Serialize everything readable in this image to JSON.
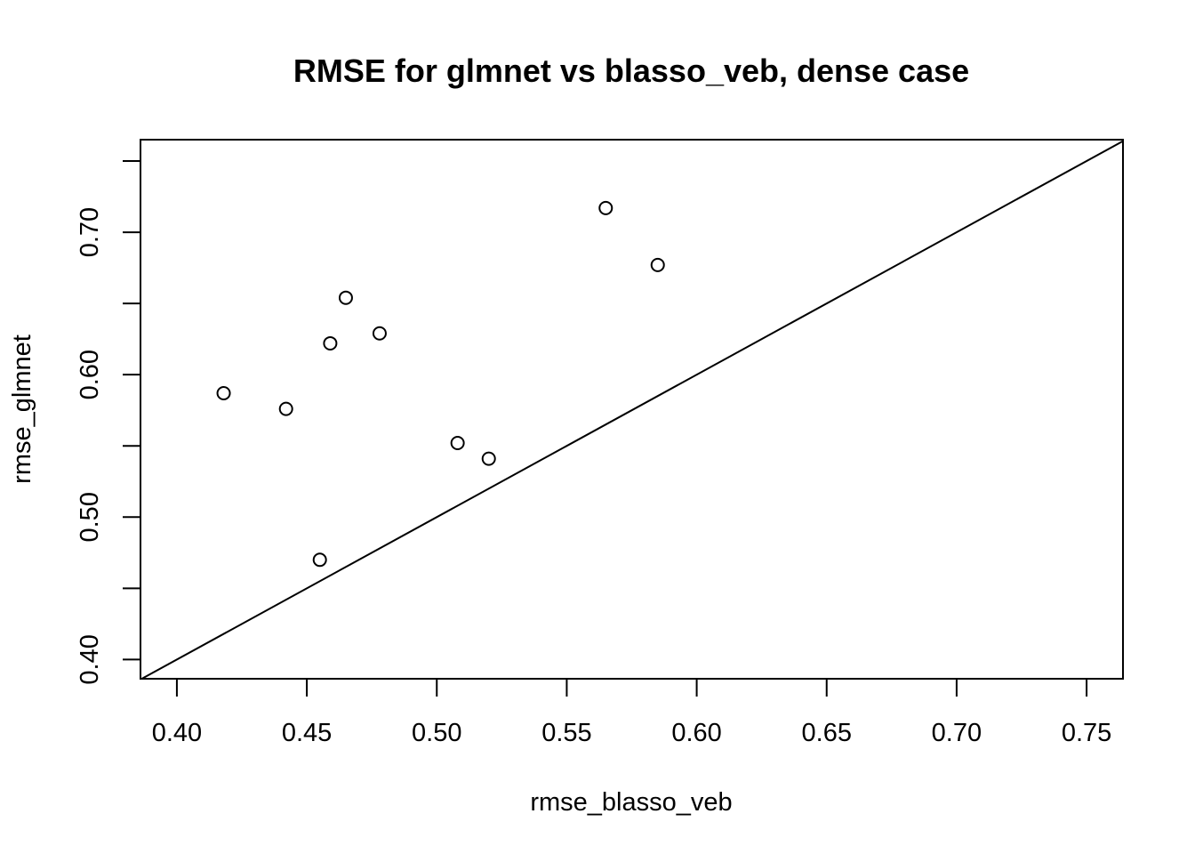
{
  "chart_data": {
    "type": "scatter",
    "title": "RMSE for glmnet vs blasso_veb, dense case",
    "xlabel": "rmse_blasso_veb",
    "ylabel": "rmse_glmnet",
    "xlim": [
      0.386,
      0.764
    ],
    "ylim": [
      0.3865,
      0.765
    ],
    "x_ticks": [
      0.4,
      0.45,
      0.5,
      0.55,
      0.6,
      0.65,
      0.7,
      0.75
    ],
    "x_tick_labels": [
      "0.40",
      "0.45",
      "0.50",
      "0.55",
      "0.60",
      "0.65",
      "0.70",
      "0.75"
    ],
    "y_ticks": [
      0.4,
      0.45,
      0.5,
      0.55,
      0.6,
      0.65,
      0.7,
      0.75
    ],
    "y_tick_labels": [
      "0.40",
      "",
      "0.50",
      "",
      "0.60",
      "",
      "0.70",
      ""
    ],
    "series": [
      {
        "points": [
          {
            "x": 0.418,
            "y": 0.587
          },
          {
            "x": 0.442,
            "y": 0.576
          },
          {
            "x": 0.455,
            "y": 0.47
          },
          {
            "x": 0.459,
            "y": 0.622
          },
          {
            "x": 0.465,
            "y": 0.654
          },
          {
            "x": 0.478,
            "y": 0.629
          },
          {
            "x": 0.508,
            "y": 0.552
          },
          {
            "x": 0.52,
            "y": 0.541
          },
          {
            "x": 0.565,
            "y": 0.717
          },
          {
            "x": 0.585,
            "y": 0.677
          }
        ]
      }
    ],
    "reference_line": {
      "type": "identity",
      "slope": 1,
      "intercept": 0
    },
    "grid": false,
    "legend": "none"
  }
}
